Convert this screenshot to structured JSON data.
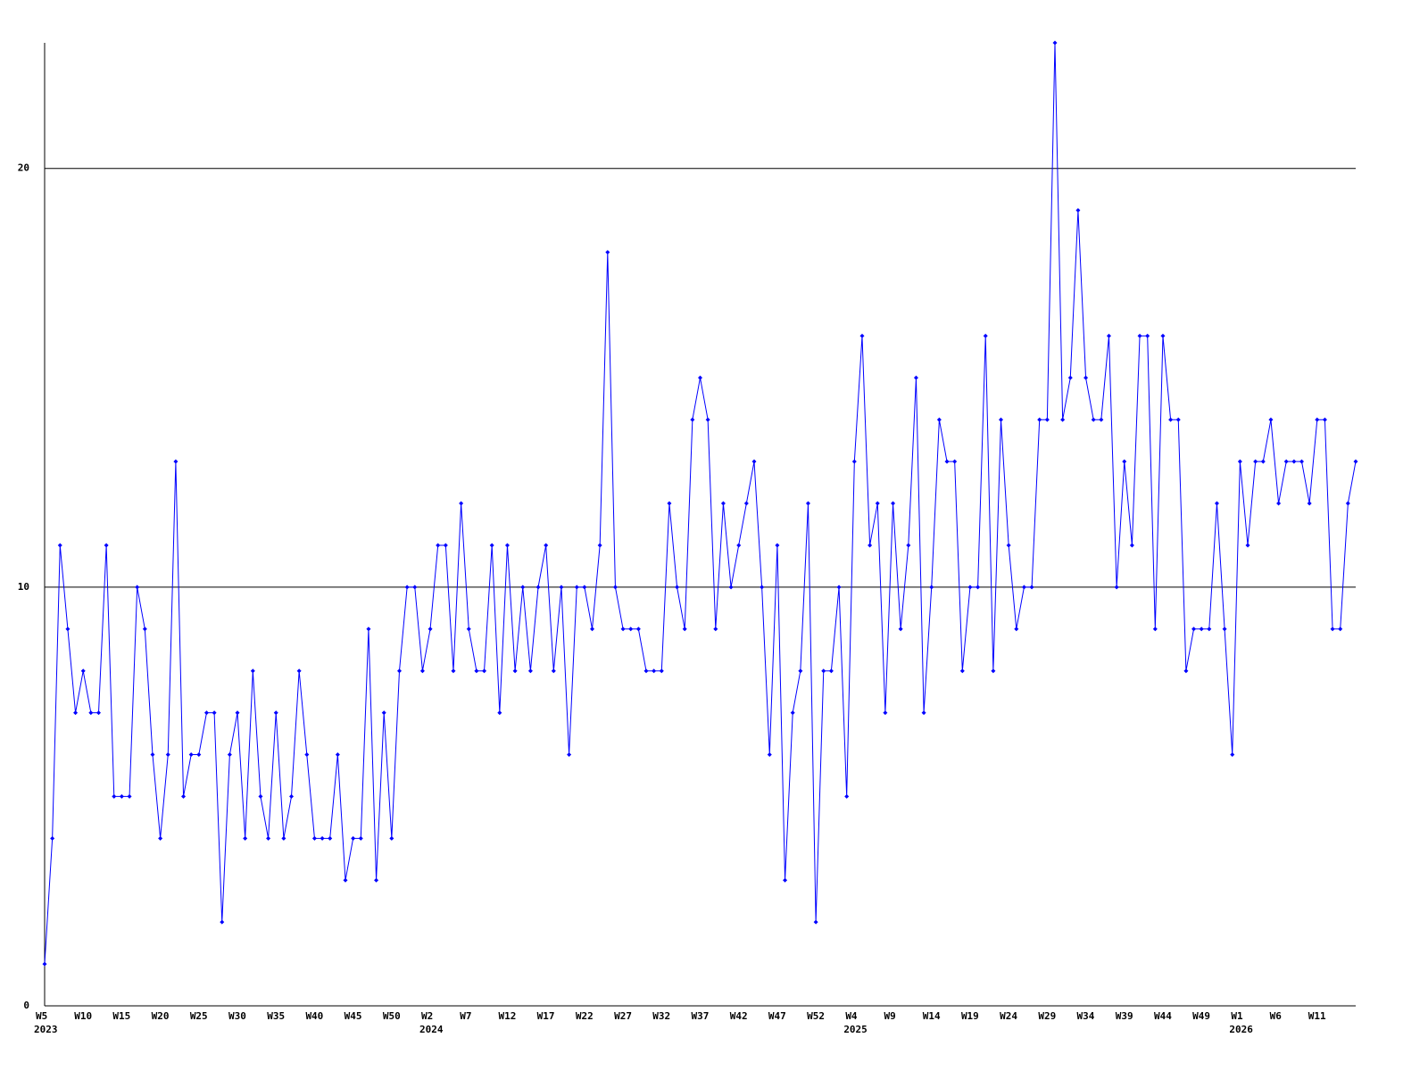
{
  "chart_data": {
    "type": "line",
    "categories": [
      "W5",
      null,
      null,
      null,
      null,
      "W10",
      null,
      null,
      null,
      null,
      "W15",
      null,
      null,
      null,
      null,
      "W20",
      null,
      null,
      null,
      null,
      "W25",
      null,
      null,
      null,
      null,
      "W30",
      null,
      null,
      null,
      null,
      "W35",
      null,
      null,
      null,
      null,
      "W40",
      null,
      null,
      null,
      null,
      "W45",
      null,
      null,
      null,
      null,
      "W50",
      null,
      null,
      null,
      null,
      "W2",
      null,
      null,
      null,
      null,
      "W7",
      null,
      null,
      null,
      null,
      "W12",
      null,
      null,
      null,
      null,
      "W17",
      null,
      null,
      null,
      null,
      "W22",
      null,
      null,
      null,
      null,
      "W27",
      null,
      null,
      null,
      null,
      "W32",
      null,
      null,
      null,
      null,
      "W37",
      null,
      null,
      null,
      null,
      "W42",
      null,
      null,
      null,
      null,
      "W47",
      null,
      null,
      null,
      null,
      "W52",
      null,
      null,
      null,
      null,
      "W4",
      null,
      null,
      null,
      null,
      "W9",
      null,
      null,
      null,
      null,
      "W14",
      null,
      null,
      null,
      null,
      "W19",
      null,
      null,
      null,
      null,
      "W24",
      null,
      null,
      null,
      null,
      "W29",
      null,
      null,
      null,
      null,
      "W34",
      null,
      null,
      null,
      null,
      "W39",
      null,
      null,
      null,
      null,
      "W44",
      null,
      null,
      null,
      null,
      "W49",
      null,
      null,
      null,
      null,
      "W1",
      null,
      null,
      null,
      null,
      "W6",
      null,
      null,
      null,
      null,
      "W11",
      null,
      null,
      null,
      null,
      null
    ],
    "category_years": [
      "2023",
      null,
      null,
      null,
      null,
      null,
      null,
      null,
      null,
      null,
      null,
      null,
      null,
      null,
      null,
      null,
      null,
      null,
      null,
      null,
      null,
      null,
      null,
      null,
      null,
      null,
      null,
      null,
      null,
      null,
      null,
      null,
      null,
      null,
      null,
      null,
      null,
      null,
      null,
      null,
      null,
      null,
      null,
      null,
      null,
      null,
      null,
      null,
      null,
      null,
      "2024",
      null,
      null,
      null,
      null,
      null,
      null,
      null,
      null,
      null,
      null,
      null,
      null,
      null,
      null,
      null,
      null,
      null,
      null,
      null,
      null,
      null,
      null,
      null,
      null,
      null,
      null,
      null,
      null,
      null,
      null,
      null,
      null,
      null,
      null,
      null,
      null,
      null,
      null,
      null,
      null,
      null,
      null,
      null,
      null,
      null,
      null,
      null,
      null,
      null,
      null,
      null,
      null,
      null,
      null,
      "2025",
      null,
      null,
      null,
      null,
      null,
      null,
      null,
      null,
      null,
      null,
      null,
      null,
      null,
      null,
      null,
      null,
      null,
      null,
      null,
      null,
      null,
      null,
      null,
      null,
      null,
      null,
      null,
      null,
      null,
      null,
      null,
      null,
      null,
      null,
      null,
      null,
      null,
      null,
      null,
      null,
      null,
      null,
      null,
      null,
      null,
      null,
      null,
      null,
      null,
      "2026",
      null,
      null,
      null,
      null,
      null,
      null,
      null,
      null,
      null,
      null,
      null,
      null,
      null,
      null,
      null
    ],
    "series": [
      {
        "color": "#0000ff",
        "values": [
          1,
          4,
          11,
          9,
          7,
          8,
          7,
          7,
          11,
          5,
          5,
          5,
          10,
          9,
          6,
          4,
          6,
          13,
          5,
          6,
          6,
          7,
          7,
          2,
          6,
          7,
          4,
          8,
          5,
          4,
          7,
          4,
          5,
          8,
          6,
          4,
          4,
          4,
          6,
          3,
          4,
          4,
          9,
          3,
          7,
          4,
          8,
          10,
          10,
          8,
          9,
          11,
          11,
          8,
          12,
          9,
          8,
          8,
          11,
          7,
          11,
          8,
          10,
          8,
          10,
          11,
          8,
          10,
          6,
          10,
          10,
          9,
          11,
          18,
          10,
          9,
          9,
          9,
          8,
          8,
          8,
          12,
          10,
          9,
          14,
          15,
          14,
          9,
          12,
          10,
          11,
          12,
          13,
          10,
          6,
          11,
          3,
          7,
          8,
          12,
          2,
          8,
          8,
          10,
          5,
          13,
          16,
          11,
          12,
          7,
          12,
          9,
          11,
          15,
          7,
          10,
          14,
          13,
          13,
          8,
          10,
          10,
          16,
          8,
          14,
          11,
          9,
          10,
          10,
          14,
          14,
          23,
          14,
          15,
          19,
          15,
          14,
          14,
          16,
          10,
          13,
          11,
          16,
          16,
          9,
          16,
          14,
          14,
          8,
          9,
          9,
          9,
          12,
          9,
          6,
          13,
          11,
          13,
          13,
          14,
          12,
          13,
          13,
          13,
          12,
          14,
          14,
          9,
          9,
          12,
          13
        ]
      }
    ],
    "ylim": [
      0,
      23
    ],
    "yticks": [
      0,
      10,
      20
    ],
    "grid": true
  }
}
